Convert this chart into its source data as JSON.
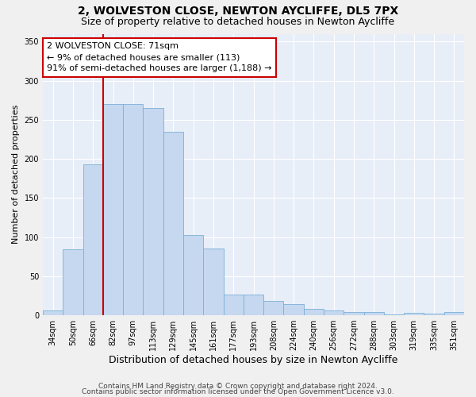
{
  "title": "2, WOLVESTON CLOSE, NEWTON AYCLIFFE, DL5 7PX",
  "subtitle": "Size of property relative to detached houses in Newton Aycliffe",
  "xlabel": "Distribution of detached houses by size in Newton Aycliffe",
  "ylabel": "Number of detached properties",
  "categories": [
    "34sqm",
    "50sqm",
    "66sqm",
    "82sqm",
    "97sqm",
    "113sqm",
    "129sqm",
    "145sqm",
    "161sqm",
    "177sqm",
    "193sqm",
    "208sqm",
    "224sqm",
    "240sqm",
    "256sqm",
    "272sqm",
    "288sqm",
    "303sqm",
    "319sqm",
    "335sqm",
    "351sqm"
  ],
  "values": [
    6,
    84,
    193,
    270,
    270,
    265,
    235,
    103,
    85,
    26,
    26,
    18,
    14,
    8,
    6,
    4,
    4,
    1,
    3,
    2,
    4
  ],
  "bar_color": "#c5d8f0",
  "bar_edge_color": "#7bafd4",
  "annotation_text": "2 WOLVESTON CLOSE: 71sqm\n← 9% of detached houses are smaller (113)\n91% of semi-detached houses are larger (1,188) →",
  "annotation_box_color": "#ffffff",
  "annotation_box_edge_color": "#cc0000",
  "vline_color": "#cc0000",
  "footer_line1": "Contains HM Land Registry data © Crown copyright and database right 2024.",
  "footer_line2": "Contains public sector information licensed under the Open Government Licence v3.0.",
  "ylim": [
    0,
    360
  ],
  "yticks": [
    0,
    50,
    100,
    150,
    200,
    250,
    300,
    350
  ],
  "bg_color": "#e8eef8",
  "grid_color": "#ffffff",
  "title_fontsize": 10,
  "subtitle_fontsize": 9,
  "ylabel_fontsize": 8,
  "xlabel_fontsize": 9,
  "tick_fontsize": 7,
  "annotation_fontsize": 8,
  "footer_fontsize": 6.5
}
